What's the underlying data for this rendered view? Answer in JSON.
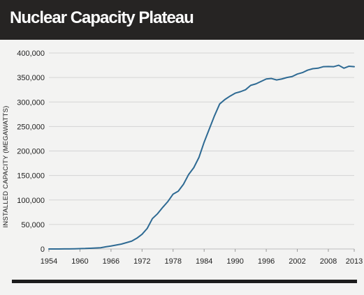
{
  "header": {
    "title": "Nuclear Capacity Plateau"
  },
  "colors": {
    "header_bg": "#262423",
    "line": "#2e6a93",
    "grid": "#d4d4d4",
    "page_bg": "#f3f3f2"
  },
  "chart_data": {
    "type": "line",
    "title": "Nuclear Capacity Plateau",
    "xlabel": "",
    "ylabel": "INSTALLED CAPACITY (MEGAWATTS)",
    "xlim": [
      1954,
      2013
    ],
    "ylim": [
      0,
      400000
    ],
    "grid": true,
    "legend": "none",
    "x_ticks": [
      1954,
      1960,
      1966,
      1972,
      1978,
      1984,
      1990,
      1996,
      2002,
      2008,
      2013
    ],
    "x_tick_labels": [
      "1954",
      "1960",
      "1966",
      "1972",
      "1978",
      "1984",
      "1990",
      "1996",
      "2002",
      "2008",
      "2013"
    ],
    "y_ticks": [
      0,
      50000,
      100000,
      150000,
      200000,
      250000,
      300000,
      350000,
      400000
    ],
    "y_tick_labels": [
      "0",
      "50,000",
      "100,000",
      "150,000",
      "200,000",
      "250,000",
      "300,000",
      "350,000",
      "400,000"
    ],
    "series": [
      {
        "x": [
          1954,
          1955,
          1956,
          1957,
          1958,
          1959,
          1960,
          1961,
          1962,
          1963,
          1964,
          1965,
          1966,
          1967,
          1968,
          1969,
          1970,
          1971,
          1972,
          1973,
          1974,
          1975,
          1976,
          1977,
          1978,
          1979,
          1980,
          1981,
          1982,
          1983,
          1984,
          1985,
          1986,
          1987,
          1988,
          1989,
          1990,
          1991,
          1992,
          1993,
          1994,
          1995,
          1996,
          1997,
          1998,
          1999,
          2000,
          2001,
          2002,
          2003,
          2004,
          2005,
          2006,
          2007,
          2008,
          2009,
          2010,
          2011,
          2012,
          2013
        ],
        "values": [
          5,
          10,
          50,
          100,
          200,
          400,
          800,
          1000,
          1500,
          2000,
          2500,
          4500,
          6000,
          8000,
          10000,
          13000,
          16000,
          22000,
          30000,
          42000,
          62000,
          72000,
          85000,
          97000,
          112000,
          118000,
          132000,
          152000,
          166000,
          187000,
          218000,
          245000,
          272000,
          296000,
          305000,
          312000,
          318000,
          321000,
          325000,
          334000,
          337000,
          342000,
          347000,
          348000,
          345000,
          347000,
          350000,
          352000,
          357000,
          360000,
          365000,
          368000,
          369000,
          372000,
          372500,
          372000,
          375000,
          369000,
          373000,
          372000
        ]
      }
    ]
  }
}
